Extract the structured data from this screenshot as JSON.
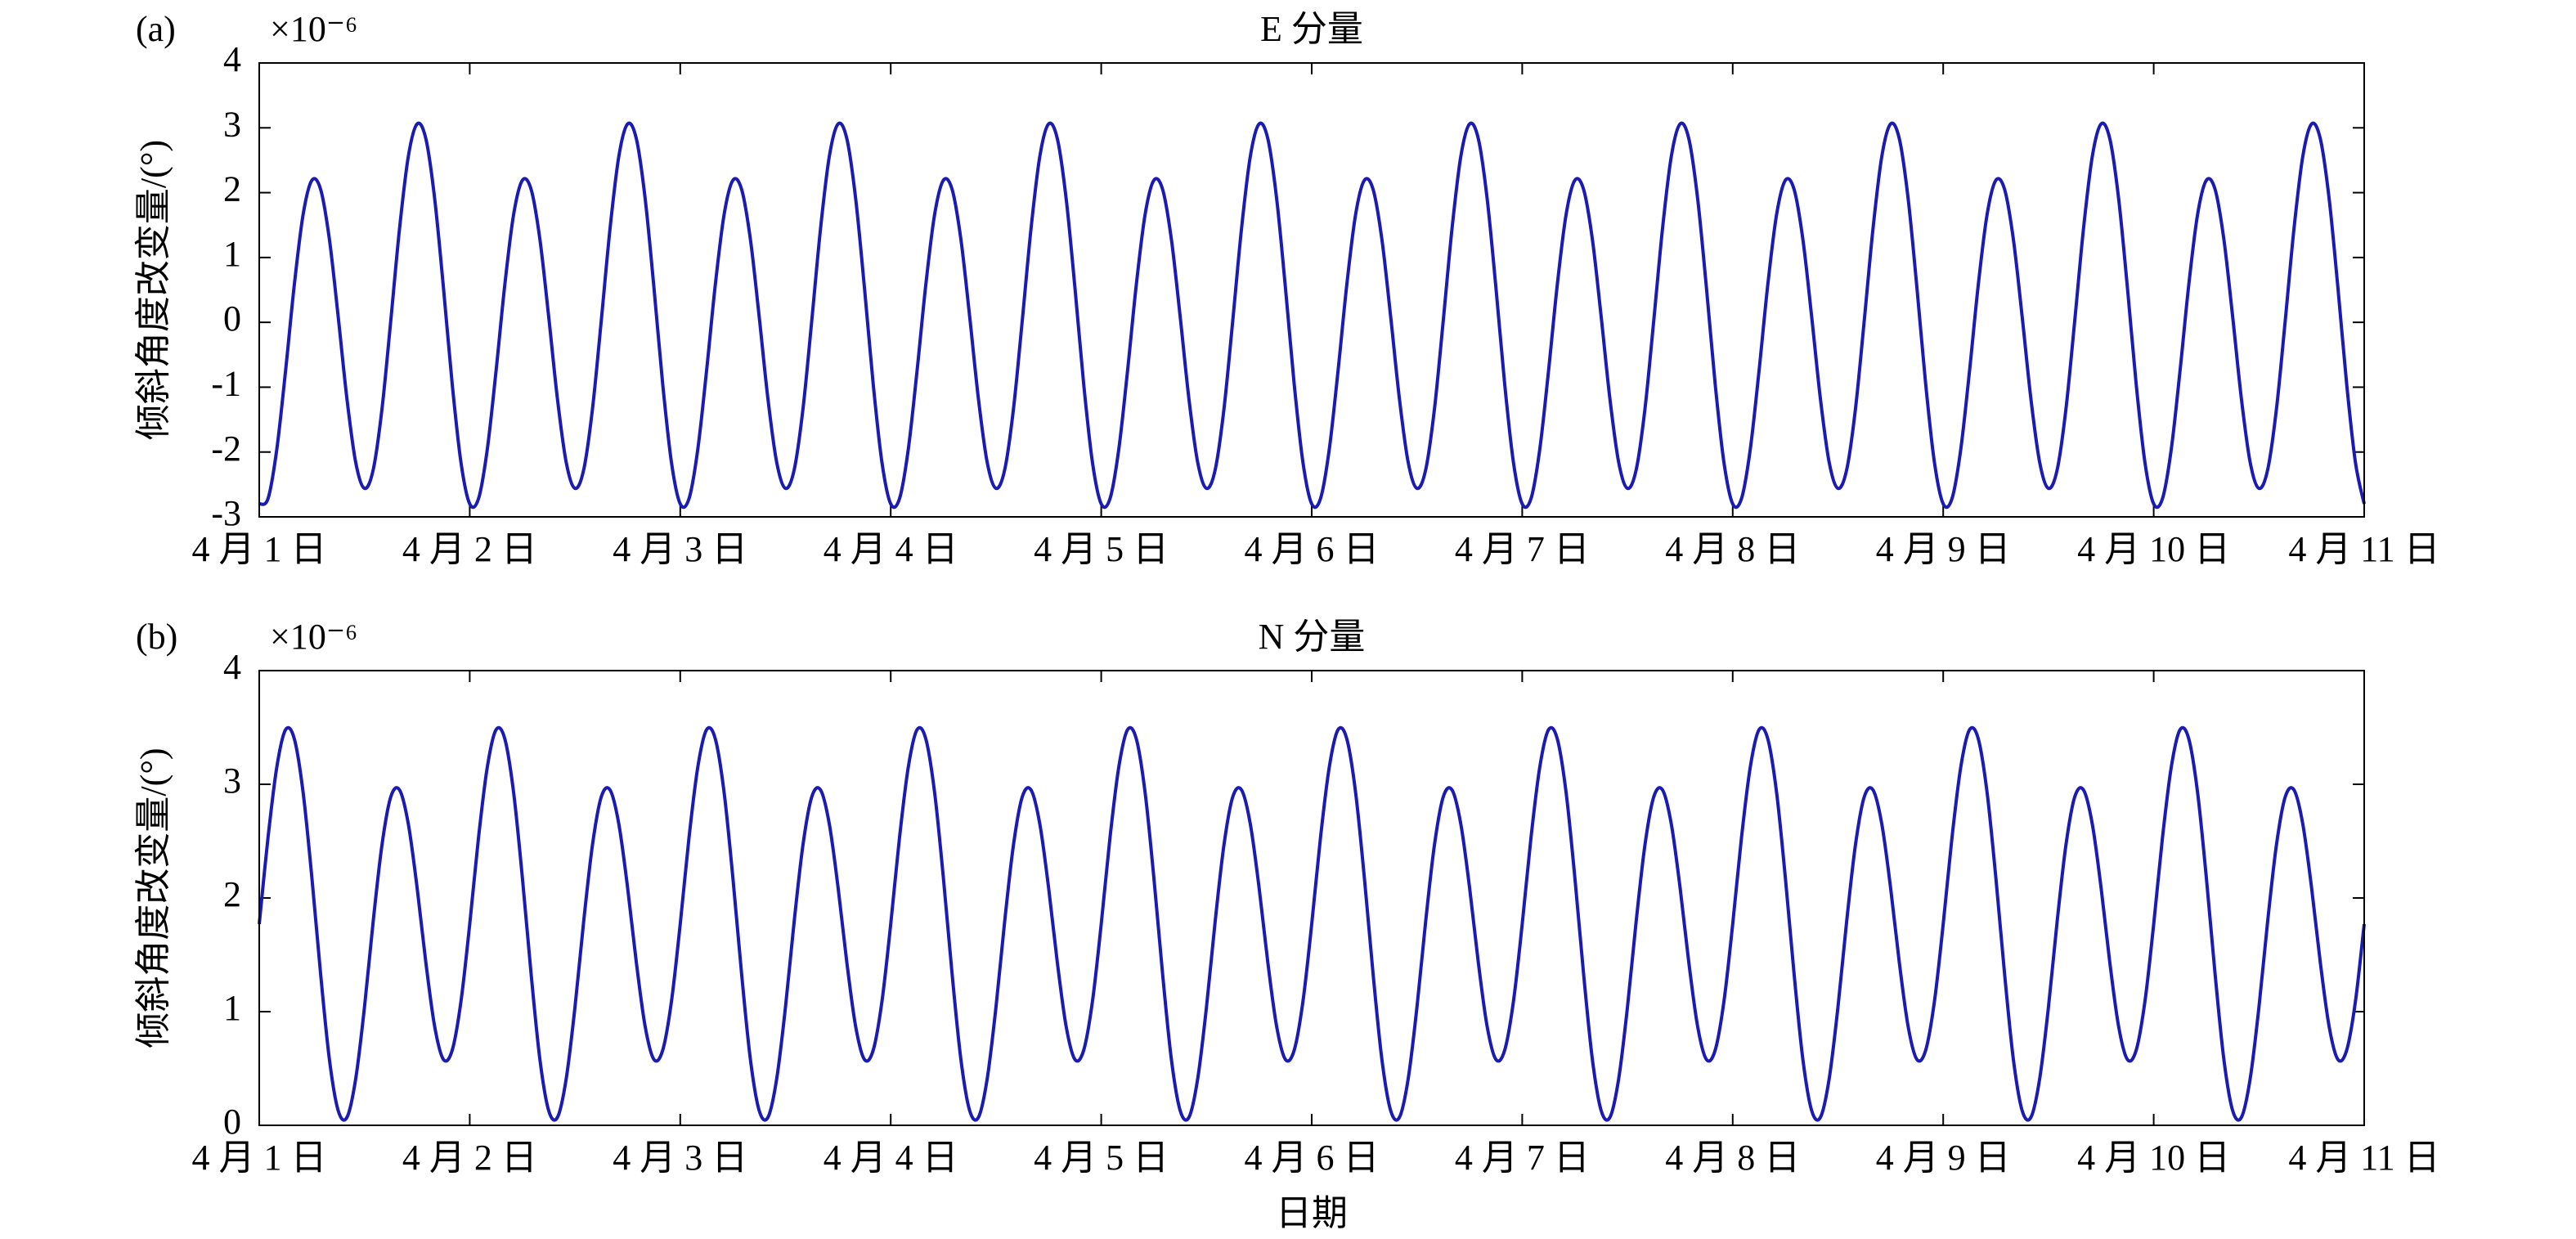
{
  "chart_data": [
    {
      "type": "line",
      "panel_label": "(a)",
      "multiplier_label": "×10⁻⁶",
      "title": "E 分量",
      "y_label": "倾斜角度改变量/(°)",
      "color": "#1a1ab4",
      "xlim": [
        0,
        240
      ],
      "xticks": [
        {
          "value": 0,
          "label": "4 月 1 日"
        },
        {
          "value": 24,
          "label": "4 月 2 日"
        },
        {
          "value": 48,
          "label": "4 月 3 日"
        },
        {
          "value": 72,
          "label": "4 月 4 日"
        },
        {
          "value": 96,
          "label": "4 月 5 日"
        },
        {
          "value": 120,
          "label": "4 月 6 日"
        },
        {
          "value": 144,
          "label": "4 月 7 日"
        },
        {
          "value": 168,
          "label": "4 月 8 日"
        },
        {
          "value": 192,
          "label": "4 月 9 日"
        },
        {
          "value": 216,
          "label": "4 月 10 日"
        },
        {
          "value": 240,
          "label": "4 月 11 日"
        }
      ],
      "ylim": [
        -3,
        4
      ],
      "yticks": [
        -3,
        -2,
        -1,
        0,
        1,
        2,
        3,
        4
      ],
      "x": [
        0,
        1,
        2,
        3,
        4,
        5,
        6,
        7,
        8,
        9,
        10,
        11,
        12,
        13,
        14,
        15,
        16,
        17,
        18,
        19,
        20,
        21,
        22,
        23,
        24,
        25,
        26,
        27,
        28,
        29,
        30,
        31,
        32,
        33,
        34,
        35,
        36,
        37,
        38,
        39,
        40,
        41,
        42,
        43,
        44,
        45,
        46,
        47,
        48,
        49,
        50,
        51,
        52,
        53,
        54,
        55,
        56,
        57,
        58,
        59,
        60,
        61,
        62,
        63,
        64,
        65,
        66,
        67,
        68,
        69,
        70,
        71,
        72,
        73,
        74,
        75,
        76,
        77,
        78,
        79,
        80,
        81,
        82,
        83,
        84,
        85,
        86,
        87,
        88,
        89,
        90,
        91,
        92,
        93,
        94,
        95,
        96,
        97,
        98,
        99,
        100,
        101,
        102,
        103,
        104,
        105,
        106,
        107,
        108,
        109,
        110,
        111,
        112,
        113,
        114,
        115,
        116,
        117,
        118,
        119,
        120,
        121,
        122,
        123,
        124,
        125,
        126,
        127,
        128,
        129,
        130,
        131,
        132,
        133,
        134,
        135,
        136,
        137,
        138,
        139,
        140,
        141,
        142,
        143,
        144,
        145,
        146,
        147,
        148,
        149,
        150,
        151,
        152,
        153,
        154,
        155,
        156,
        157,
        158,
        159,
        160,
        161,
        162,
        163,
        164,
        165,
        166,
        167,
        168,
        169,
        170,
        171,
        172,
        173,
        174,
        175,
        176,
        177,
        178,
        179,
        180,
        181,
        182,
        183,
        184,
        185,
        186,
        187,
        188,
        189,
        190,
        191,
        192,
        193,
        194,
        195,
        196,
        197,
        198,
        199,
        200,
        201,
        202,
        203,
        204,
        205,
        206,
        207,
        208,
        209,
        210,
        211,
        212,
        213,
        214,
        215,
        216,
        217,
        218,
        219,
        220,
        221,
        222,
        223,
        224,
        225,
        226,
        227,
        228,
        229,
        230,
        231,
        232,
        233,
        234,
        235,
        236,
        237,
        238,
        239,
        240
      ],
      "values": [
        -2.8,
        -2.72,
        -1.96,
        -0.75,
        0.58,
        1.66,
        2.19,
        2.05,
        1.28,
        0.09,
        -1.18,
        -2.16,
        -2.56,
        -2.27,
        -1.33,
        0.03,
        1.45,
        2.56,
        3.06,
        2.83,
        1.91,
        0.54,
        -0.95,
        -2.16,
        -2.8,
        -2.72,
        -1.96,
        -0.75,
        0.58,
        1.66,
        2.19,
        2.05,
        1.28,
        0.09,
        -1.18,
        -2.16,
        -2.56,
        -2.27,
        -1.33,
        0.03,
        1.45,
        2.56,
        3.06,
        2.83,
        1.91,
        0.54,
        -0.95,
        -2.16,
        -2.8,
        -2.72,
        -1.96,
        -0.75,
        0.58,
        1.66,
        2.19,
        2.05,
        1.28,
        0.09,
        -1.18,
        -2.16,
        -2.56,
        -2.27,
        -1.33,
        0.03,
        1.45,
        2.56,
        3.06,
        2.83,
        1.91,
        0.54,
        -0.95,
        -2.16,
        -2.8,
        -2.72,
        -1.96,
        -0.75,
        0.58,
        1.66,
        2.19,
        2.05,
        1.28,
        0.09,
        -1.18,
        -2.16,
        -2.56,
        -2.27,
        -1.33,
        0.03,
        1.45,
        2.56,
        3.06,
        2.83,
        1.91,
        0.54,
        -0.95,
        -2.16,
        -2.8,
        -2.72,
        -1.96,
        -0.75,
        0.58,
        1.66,
        2.19,
        2.05,
        1.28,
        0.09,
        -1.18,
        -2.16,
        -2.56,
        -2.27,
        -1.33,
        0.03,
        1.45,
        2.56,
        3.06,
        2.83,
        1.91,
        0.54,
        -0.95,
        -2.16,
        -2.8,
        -2.72,
        -1.96,
        -0.75,
        0.58,
        1.66,
        2.19,
        2.05,
        1.28,
        0.09,
        -1.18,
        -2.16,
        -2.56,
        -2.27,
        -1.33,
        0.03,
        1.45,
        2.56,
        3.06,
        2.83,
        1.91,
        0.54,
        -0.95,
        -2.16,
        -2.8,
        -2.72,
        -1.96,
        -0.75,
        0.58,
        1.66,
        2.19,
        2.05,
        1.28,
        0.09,
        -1.18,
        -2.16,
        -2.56,
        -2.27,
        -1.33,
        0.03,
        1.45,
        2.56,
        3.06,
        2.83,
        1.91,
        0.54,
        -0.95,
        -2.16,
        -2.8,
        -2.72,
        -1.96,
        -0.75,
        0.58,
        1.66,
        2.19,
        2.05,
        1.28,
        0.09,
        -1.18,
        -2.16,
        -2.56,
        -2.27,
        -1.33,
        0.03,
        1.45,
        2.56,
        3.06,
        2.83,
        1.91,
        0.54,
        -0.95,
        -2.16,
        -2.8,
        -2.72,
        -1.96,
        -0.75,
        0.58,
        1.66,
        2.19,
        2.05,
        1.28,
        0.09,
        -1.18,
        -2.16,
        -2.56,
        -2.27,
        -1.33,
        0.03,
        1.45,
        2.56,
        3.06,
        2.83,
        1.91,
        0.54,
        -0.95,
        -2.16,
        -2.8,
        -2.72,
        -1.96,
        -0.75,
        0.58,
        1.66,
        2.19,
        2.05,
        1.28,
        0.09,
        -1.18,
        -2.16,
        -2.56,
        -2.27,
        -1.33,
        0.03,
        1.45,
        2.56,
        3.06,
        2.83,
        1.91,
        0.54,
        -0.95,
        -2.16,
        -2.8
      ]
    },
    {
      "type": "line",
      "panel_label": "(b)",
      "multiplier_label": "×10⁻⁶",
      "title": "N 分量",
      "y_label": "倾斜角度改变量/(°)",
      "x_label": "日期",
      "color": "#1a1ab4",
      "xlim": [
        0,
        240
      ],
      "xticks": [
        {
          "value": 0,
          "label": "4 月 1 日"
        },
        {
          "value": 24,
          "label": "4 月 2 日"
        },
        {
          "value": 48,
          "label": "4 月 3 日"
        },
        {
          "value": 72,
          "label": "4 月 4 日"
        },
        {
          "value": 96,
          "label": "4 月 5 日"
        },
        {
          "value": 120,
          "label": "4 月 6 日"
        },
        {
          "value": 144,
          "label": "4 月 7 日"
        },
        {
          "value": 168,
          "label": "4 月 8 日"
        },
        {
          "value": 192,
          "label": "4 月 9 日"
        },
        {
          "value": 216,
          "label": "4 月 10 日"
        },
        {
          "value": 240,
          "label": "4 月 11 日"
        }
      ],
      "ylim": [
        0,
        4
      ],
      "yticks": [
        0,
        1,
        2,
        3,
        4
      ],
      "x": [
        0,
        1,
        2,
        3,
        4,
        5,
        6,
        7,
        8,
        9,
        10,
        11,
        12,
        13,
        14,
        15,
        16,
        17,
        18,
        19,
        20,
        21,
        22,
        23,
        24,
        25,
        26,
        27,
        28,
        29,
        30,
        31,
        32,
        33,
        34,
        35,
        36,
        37,
        38,
        39,
        40,
        41,
        42,
        43,
        44,
        45,
        46,
        47,
        48,
        49,
        50,
        51,
        52,
        53,
        54,
        55,
        56,
        57,
        58,
        59,
        60,
        61,
        62,
        63,
        64,
        65,
        66,
        67,
        68,
        69,
        70,
        71,
        72,
        73,
        74,
        75,
        76,
        77,
        78,
        79,
        80,
        81,
        82,
        83,
        84,
        85,
        86,
        87,
        88,
        89,
        90,
        91,
        92,
        93,
        94,
        95,
        96,
        97,
        98,
        99,
        100,
        101,
        102,
        103,
        104,
        105,
        106,
        107,
        108,
        109,
        110,
        111,
        112,
        113,
        114,
        115,
        116,
        117,
        118,
        119,
        120,
        121,
        122,
        123,
        124,
        125,
        126,
        127,
        128,
        129,
        130,
        131,
        132,
        133,
        134,
        135,
        136,
        137,
        138,
        139,
        140,
        141,
        142,
        143,
        144,
        145,
        146,
        147,
        148,
        149,
        150,
        151,
        152,
        153,
        154,
        155,
        156,
        157,
        158,
        159,
        160,
        161,
        162,
        163,
        164,
        165,
        166,
        167,
        168,
        169,
        170,
        171,
        172,
        173,
        174,
        175,
        176,
        177,
        178,
        179,
        180,
        181,
        182,
        183,
        184,
        185,
        186,
        187,
        188,
        189,
        190,
        191,
        192,
        193,
        194,
        195,
        196,
        197,
        198,
        199,
        200,
        201,
        202,
        203,
        204,
        205,
        206,
        207,
        208,
        209,
        210,
        211,
        212,
        213,
        214,
        215,
        216,
        217,
        218,
        219,
        220,
        221,
        222,
        223,
        224,
        225,
        226,
        227,
        228,
        229,
        230,
        231,
        232,
        233,
        234,
        235,
        236,
        237,
        238,
        239,
        240
      ],
      "values": [
        1.77,
        2.53,
        3.15,
        3.48,
        3.4,
        2.93,
        2.18,
        1.33,
        0.58,
        0.13,
        0.07,
        0.41,
        1.04,
        1.8,
        2.47,
        2.89,
        2.95,
        2.65,
        2.09,
        1.43,
        0.87,
        0.58,
        0.66,
        1.09,
        1.77,
        2.53,
        3.15,
        3.48,
        3.4,
        2.93,
        2.18,
        1.33,
        0.58,
        0.13,
        0.07,
        0.41,
        1.04,
        1.8,
        2.47,
        2.89,
        2.95,
        2.65,
        2.09,
        1.43,
        0.87,
        0.58,
        0.66,
        1.09,
        1.77,
        2.53,
        3.15,
        3.48,
        3.4,
        2.93,
        2.18,
        1.33,
        0.58,
        0.13,
        0.07,
        0.41,
        1.04,
        1.8,
        2.47,
        2.89,
        2.95,
        2.65,
        2.09,
        1.43,
        0.87,
        0.58,
        0.66,
        1.09,
        1.77,
        2.53,
        3.15,
        3.48,
        3.4,
        2.93,
        2.18,
        1.33,
        0.58,
        0.13,
        0.07,
        0.41,
        1.04,
        1.8,
        2.47,
        2.89,
        2.95,
        2.65,
        2.09,
        1.43,
        0.87,
        0.58,
        0.66,
        1.09,
        1.77,
        2.53,
        3.15,
        3.48,
        3.4,
        2.93,
        2.18,
        1.33,
        0.58,
        0.13,
        0.07,
        0.41,
        1.04,
        1.8,
        2.47,
        2.89,
        2.95,
        2.65,
        2.09,
        1.43,
        0.87,
        0.58,
        0.66,
        1.09,
        1.77,
        2.53,
        3.15,
        3.48,
        3.4,
        2.93,
        2.18,
        1.33,
        0.58,
        0.13,
        0.07,
        0.41,
        1.04,
        1.8,
        2.47,
        2.89,
        2.95,
        2.65,
        2.09,
        1.43,
        0.87,
        0.58,
        0.66,
        1.09,
        1.77,
        2.53,
        3.15,
        3.48,
        3.4,
        2.93,
        2.18,
        1.33,
        0.58,
        0.13,
        0.07,
        0.41,
        1.04,
        1.8,
        2.47,
        2.89,
        2.95,
        2.65,
        2.09,
        1.43,
        0.87,
        0.58,
        0.66,
        1.09,
        1.77,
        2.53,
        3.15,
        3.48,
        3.4,
        2.93,
        2.18,
        1.33,
        0.58,
        0.13,
        0.07,
        0.41,
        1.04,
        1.8,
        2.47,
        2.89,
        2.95,
        2.65,
        2.09,
        1.43,
        0.87,
        0.58,
        0.66,
        1.09,
        1.77,
        2.53,
        3.15,
        3.48,
        3.4,
        2.93,
        2.18,
        1.33,
        0.58,
        0.13,
        0.07,
        0.41,
        1.04,
        1.8,
        2.47,
        2.89,
        2.95,
        2.65,
        2.09,
        1.43,
        0.87,
        0.58,
        0.66,
        1.09,
        1.77,
        2.53,
        3.15,
        3.48,
        3.4,
        2.93,
        2.18,
        1.33,
        0.58,
        0.13,
        0.07,
        0.41,
        1.04,
        1.8,
        2.47,
        2.89,
        2.95,
        2.65,
        2.09,
        1.43,
        0.87,
        0.58,
        0.66,
        1.09,
        1.77
      ]
    }
  ]
}
